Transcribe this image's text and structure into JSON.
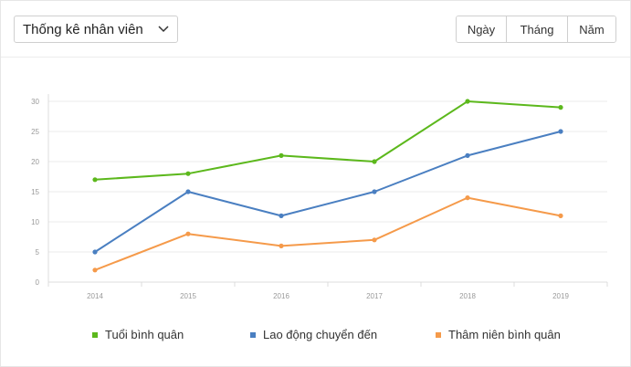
{
  "header": {
    "dropdown_label": "Thống kê nhân viên",
    "period_buttons": [
      "Ngày",
      "Tháng",
      "Năm"
    ]
  },
  "chart_data": {
    "type": "line",
    "title": "",
    "xlabel": "",
    "ylabel": "",
    "categories": [
      "2014",
      "2015",
      "2016",
      "2017",
      "2018",
      "2019"
    ],
    "ylim": [
      0,
      30
    ],
    "yticks": [
      0,
      5,
      10,
      15,
      20,
      25,
      30
    ],
    "grid": true,
    "legend_position": "bottom",
    "series": [
      {
        "name": "Tuổi bình quân",
        "color": "#5cb81c",
        "values": [
          17,
          18,
          21,
          20,
          30,
          29
        ]
      },
      {
        "name": "Lao động chuyển đến",
        "color": "#4a7fc1",
        "values": [
          5,
          15,
          11,
          15,
          21,
          25
        ]
      },
      {
        "name": "Thâm niên bình quân",
        "color": "#f59a4a",
        "values": [
          2,
          8,
          6,
          7,
          14,
          11
        ]
      }
    ]
  }
}
